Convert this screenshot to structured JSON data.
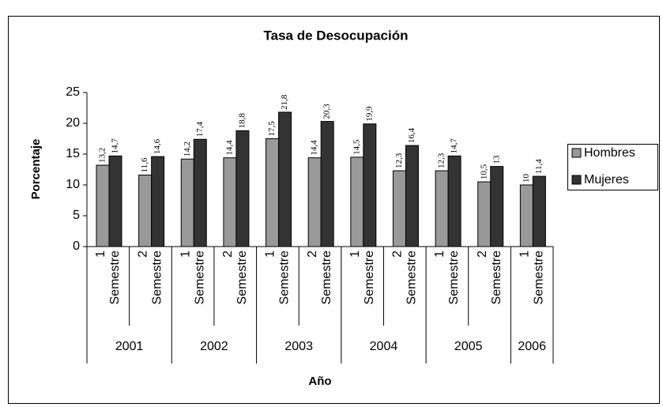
{
  "chart_data": {
    "type": "bar",
    "title": "Tasa de Desocupación",
    "x_label": "Año",
    "y_label": "Porcentaje",
    "categories": [
      [
        "1",
        "Semestre"
      ],
      [
        "2",
        "Semestre"
      ],
      [
        "1",
        "Semestre"
      ],
      [
        "2",
        "Semestre"
      ],
      [
        "1",
        "Semestre"
      ],
      [
        "2",
        "Semestre"
      ],
      [
        "1",
        "Semestre"
      ],
      [
        "2",
        "Semestre"
      ],
      [
        "1",
        "Semestre"
      ],
      [
        "2",
        "Semestre"
      ],
      [
        "1",
        "Semestre"
      ]
    ],
    "category_years": [
      "2001",
      "2001",
      "2002",
      "2002",
      "2003",
      "2003",
      "2004",
      "2004",
      "2005",
      "2005",
      "2006"
    ],
    "series": [
      {
        "name": "Hombres",
        "color": "#999999",
        "values": [
          13.2,
          11.6,
          14.2,
          14.4,
          17.5,
          14.4,
          14.5,
          12.3,
          12.3,
          10.5,
          10
        ],
        "value_labels": [
          "13,2",
          "11,6",
          "14,2",
          "14,4",
          "17,5",
          "14,4",
          "14,5",
          "12,3",
          "12,3",
          "10,5",
          "10"
        ]
      },
      {
        "name": "Mujeres",
        "color": "#333333",
        "values": [
          14.7,
          14.6,
          17.4,
          18.8,
          21.8,
          20.3,
          19.9,
          16.4,
          14.7,
          13,
          11.4
        ],
        "value_labels": [
          "14,7",
          "14,6",
          "17,4",
          "18,8",
          "21,8",
          "20,3",
          "19,9",
          "16,4",
          "14,7",
          "13",
          "11,4"
        ]
      }
    ],
    "ylim": [
      0,
      25
    ],
    "yticks": [
      0,
      5,
      10,
      15,
      20,
      25
    ],
    "legend": "right"
  }
}
